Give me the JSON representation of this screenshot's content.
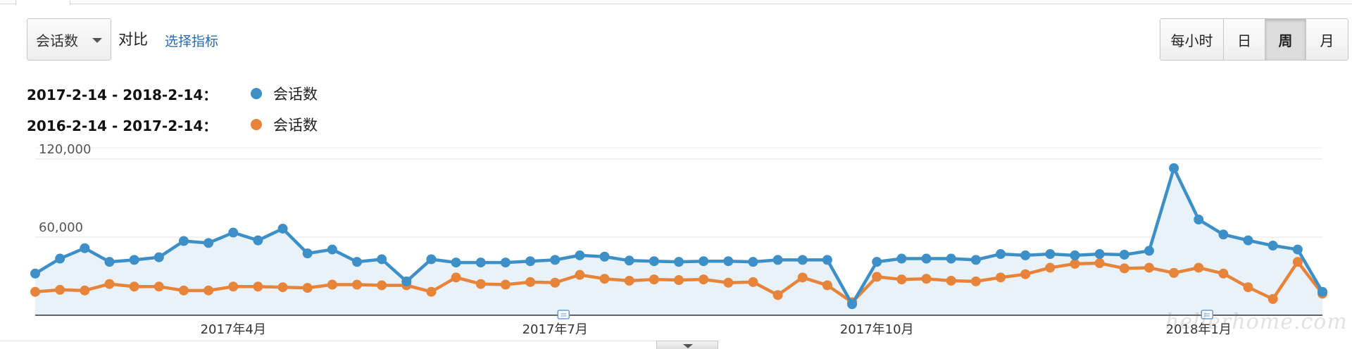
{
  "toolbar": {
    "metric_select_value": "会话数",
    "compare_label": "对比",
    "select_metric_link": "选择指标",
    "granularity": [
      {
        "label": "每小时",
        "active": false
      },
      {
        "label": "日",
        "active": false
      },
      {
        "label": "周",
        "active": true
      },
      {
        "label": "月",
        "active": false
      }
    ]
  },
  "legend": [
    {
      "range": "2017-2-14 - 2018-2-14：",
      "name": "会话数",
      "color": "#3d8fc8"
    },
    {
      "range": "2016-2-14 - 2017-2-14：",
      "name": "会话数",
      "color": "#e8843a"
    }
  ],
  "watermark": "hellerhome.com",
  "chart_data": {
    "type": "line",
    "ylim": [
      0,
      120000
    ],
    "yticks": [
      {
        "value": 120000,
        "label": "120,000"
      },
      {
        "value": 60000,
        "label": "60,000"
      }
    ],
    "xticks": [
      {
        "index": 8,
        "label": "2017年4月"
      },
      {
        "index": 21,
        "label": "2017年7月"
      },
      {
        "index": 34,
        "label": "2017年10月"
      },
      {
        "index": 47,
        "label": "2018年1月"
      }
    ],
    "annotation_indices": [
      21,
      47
    ],
    "grid": true,
    "series": [
      {
        "color": "#3d8fc8",
        "fill": true,
        "values": [
          32000,
          43500,
          51500,
          41000,
          42500,
          44500,
          57000,
          55500,
          63500,
          57500,
          66500,
          47500,
          50500,
          41000,
          43000,
          26000,
          43000,
          40500,
          40500,
          40500,
          41500,
          42500,
          46000,
          45000,
          42000,
          41500,
          41000,
          41500,
          41500,
          41000,
          42500,
          42500,
          42500,
          8500,
          41000,
          43500,
          43500,
          43500,
          42500,
          47000,
          46000,
          47000,
          46000,
          47000,
          46500,
          49500,
          113000,
          73500,
          62000,
          57500,
          53500,
          50500,
          18000
        ]
      },
      {
        "color": "#e8843a",
        "fill": false,
        "values": [
          18000,
          19500,
          19000,
          24000,
          22000,
          22000,
          19000,
          19000,
          22000,
          22000,
          21500,
          21000,
          23500,
          23500,
          23000,
          23000,
          18000,
          29000,
          24000,
          23500,
          25500,
          25000,
          31000,
          28000,
          26500,
          27500,
          27000,
          27500,
          25000,
          25500,
          15500,
          29000,
          23000,
          10000,
          29500,
          27500,
          28000,
          26500,
          26000,
          29000,
          31500,
          36500,
          39500,
          40000,
          36000,
          36500,
          32500,
          36500,
          32000,
          21500,
          12500,
          41000,
          16500
        ]
      }
    ]
  }
}
